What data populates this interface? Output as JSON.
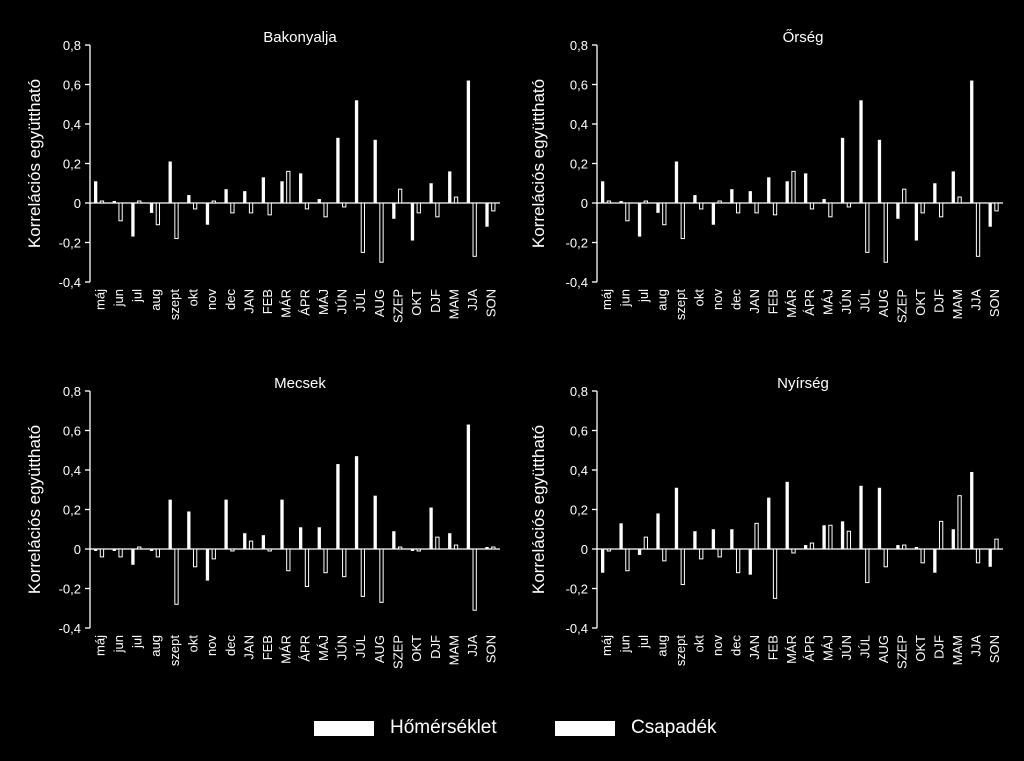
{
  "legend": {
    "temperature": "Hőmérséklet",
    "precipitation": "Csapadék"
  },
  "colors": {
    "background": "#000000",
    "foreground": "#ffffff"
  },
  "chart_data": [
    {
      "type": "bar",
      "title": "Bakonyalja",
      "ylabel": "Korrelációs együttható",
      "ylim": [
        -0.4,
        0.8
      ],
      "yticks": [
        "-0,4",
        "-0,2",
        "0",
        "0,2",
        "0,4",
        "0,6",
        "0,8"
      ],
      "categories": [
        "máj",
        "jun",
        "jul",
        "aug",
        "szept",
        "okt",
        "nov",
        "dec",
        "JAN",
        "FEB",
        "MÁR",
        "ÁPR",
        "MÁJ",
        "JÚN",
        "JÚL",
        "AUG",
        "SZEP",
        "OKT",
        "DJF",
        "MAM",
        "JJA",
        "SON"
      ],
      "series": [
        {
          "name": "Hőmérséklet",
          "values": [
            0.11,
            0.01,
            -0.17,
            -0.05,
            0.21,
            0.04,
            -0.11,
            0.07,
            0.06,
            0.13,
            0.11,
            0.15,
            0.02,
            0.33,
            0.52,
            0.32,
            -0.08,
            -0.19,
            0.1,
            0.16,
            0.62,
            -0.12
          ]
        },
        {
          "name": "Csapadék",
          "values": [
            0.01,
            -0.09,
            0.01,
            -0.11,
            -0.18,
            -0.03,
            0.01,
            -0.05,
            -0.05,
            -0.06,
            0.16,
            -0.03,
            -0.07,
            -0.02,
            -0.25,
            -0.3,
            0.07,
            -0.05,
            -0.07,
            0.03,
            -0.27,
            -0.04
          ]
        }
      ]
    },
    {
      "type": "bar",
      "title": "Őrség",
      "ylabel": "Korrelációs együttható",
      "ylim": [
        -0.4,
        0.8
      ],
      "yticks": [
        "-0,4",
        "-0,2",
        "0",
        "0,2",
        "0,4",
        "0,6",
        "0,8"
      ],
      "categories": [
        "máj",
        "jun",
        "jul",
        "aug",
        "szept",
        "okt",
        "nov",
        "dec",
        "JAN",
        "FEB",
        "MÁR",
        "ÁPR",
        "MÁJ",
        "JÚN",
        "JÚL",
        "AUG",
        "SZEP",
        "OKT",
        "DJF",
        "MAM",
        "JJA",
        "SON"
      ],
      "series": [
        {
          "name": "Hőmérséklet",
          "values": [
            0.11,
            0.01,
            -0.17,
            -0.05,
            0.21,
            0.04,
            -0.11,
            0.07,
            0.06,
            0.13,
            0.11,
            0.15,
            0.02,
            0.33,
            0.52,
            0.32,
            -0.08,
            -0.19,
            0.1,
            0.16,
            0.62,
            -0.12
          ]
        },
        {
          "name": "Csapadék",
          "values": [
            0.01,
            -0.09,
            0.01,
            -0.11,
            -0.18,
            -0.03,
            0.01,
            -0.05,
            -0.05,
            -0.06,
            0.16,
            -0.03,
            -0.07,
            -0.02,
            -0.25,
            -0.3,
            0.07,
            -0.05,
            -0.07,
            0.03,
            -0.27,
            -0.04
          ]
        }
      ]
    },
    {
      "type": "bar",
      "title": "Mecsek",
      "ylabel": "Korrelációs együttható",
      "ylim": [
        -0.4,
        0.8
      ],
      "yticks": [
        "-0,4",
        "-0,2",
        "0",
        "0,2",
        "0,4",
        "0,6",
        "0,8"
      ],
      "categories": [
        "máj",
        "jun",
        "jul",
        "aug",
        "szept",
        "okt",
        "nov",
        "dec",
        "JAN",
        "FEB",
        "MÁR",
        "ÁPR",
        "MÁJ",
        "JÚN",
        "JÚL",
        "AUG",
        "SZEP",
        "OKT",
        "DJF",
        "MAM",
        "JJA",
        "SON"
      ],
      "series": [
        {
          "name": "Hőmérséklet",
          "values": [
            -0.01,
            -0.01,
            -0.08,
            -0.01,
            0.25,
            0.19,
            -0.16,
            0.25,
            0.08,
            0.07,
            0.25,
            0.11,
            0.11,
            0.43,
            0.47,
            0.27,
            0.09,
            -0.01,
            0.21,
            0.08,
            0.63,
            0.01
          ]
        },
        {
          "name": "Csapadék",
          "values": [
            -0.04,
            -0.04,
            0.01,
            -0.04,
            -0.28,
            -0.09,
            -0.05,
            -0.01,
            0.04,
            -0.01,
            -0.11,
            -0.19,
            -0.12,
            -0.14,
            -0.24,
            -0.27,
            0.01,
            -0.01,
            0.06,
            0.02,
            -0.31,
            0.01
          ]
        }
      ]
    },
    {
      "type": "bar",
      "title": "Nyírség",
      "ylabel": "Korrelációs együttható",
      "ylim": [
        -0.4,
        0.8
      ],
      "yticks": [
        "-0,4",
        "-0,2",
        "0",
        "0,2",
        "0,4",
        "0,6",
        "0,8"
      ],
      "categories": [
        "máj",
        "jun",
        "jul",
        "aug",
        "szept",
        "okt",
        "nov",
        "dec",
        "JAN",
        "FEB",
        "MÁR",
        "ÁPR",
        "MÁJ",
        "JÚN",
        "JÚL",
        "AUG",
        "SZEP",
        "OKT",
        "DJF",
        "MAM",
        "JJA",
        "SON"
      ],
      "series": [
        {
          "name": "Hőmérséklet",
          "values": [
            -0.12,
            0.13,
            -0.03,
            0.18,
            0.31,
            0.09,
            0.1,
            0.1,
            -0.13,
            0.26,
            0.34,
            0.02,
            0.12,
            0.14,
            0.32,
            0.31,
            0.02,
            0.01,
            -0.12,
            0.1,
            0.39,
            -0.09
          ]
        },
        {
          "name": "Csapadék",
          "values": [
            -0.01,
            -0.11,
            0.06,
            -0.06,
            -0.18,
            -0.05,
            -0.04,
            -0.12,
            0.13,
            -0.25,
            -0.02,
            0.03,
            0.12,
            0.09,
            -0.17,
            -0.09,
            0.02,
            -0.07,
            0.14,
            0.27,
            -0.07,
            0.05
          ]
        }
      ]
    }
  ]
}
